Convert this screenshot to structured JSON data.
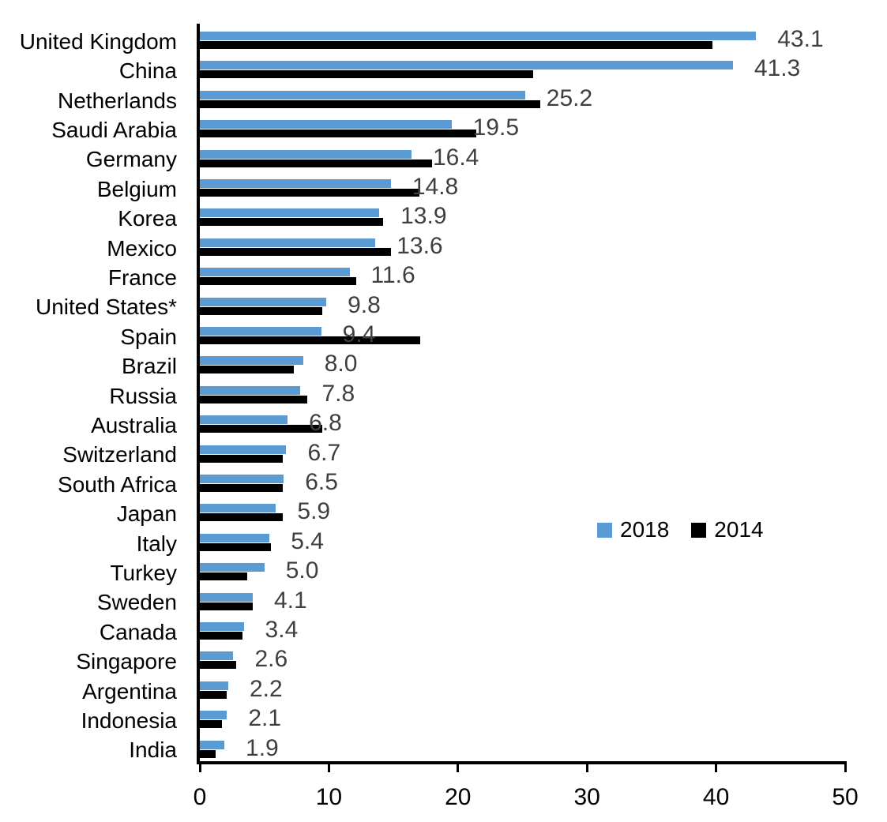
{
  "chart_data": {
    "type": "bar",
    "orientation": "horizontal",
    "title": "",
    "xlabel": "",
    "ylabel": "",
    "xlim": [
      0,
      50
    ],
    "x_ticks": [
      "0",
      "10",
      "20",
      "30",
      "40",
      "50"
    ],
    "x_tick_values": [
      0,
      10,
      20,
      30,
      40,
      50
    ],
    "grid": false,
    "legend_position": "center-right",
    "value_label_color": "#3F3F3F",
    "categories": [
      "United Kingdom",
      "China",
      "Netherlands",
      "Saudi Arabia",
      "Germany",
      "Belgium",
      "Korea",
      "Mexico",
      "France",
      "United States*",
      "Spain",
      "Brazil",
      "Russia",
      "Australia",
      "Switzerland",
      "South Africa",
      "Japan",
      "Italy",
      "Turkey",
      "Sweden",
      "Canada",
      "Singapore",
      "Argentina",
      "Indonesia",
      "India"
    ],
    "series": [
      {
        "name": "2018",
        "color": "#5B9BD5",
        "values": [
          43.1,
          41.3,
          25.2,
          19.5,
          16.4,
          14.8,
          13.9,
          13.6,
          11.6,
          9.8,
          9.4,
          8.0,
          7.8,
          6.8,
          6.7,
          6.5,
          5.9,
          5.4,
          5.0,
          4.1,
          3.4,
          2.6,
          2.2,
          2.1,
          1.9
        ],
        "data_labels": [
          "43.1",
          "41.3",
          "25.2",
          "19.5",
          "16.4",
          "14.8",
          "13.9",
          "13.6",
          "11.6",
          "9.8",
          "9.4",
          "8.0",
          "7.8",
          "6.8",
          "6.7",
          "6.5",
          "5.9",
          "5.4",
          "5.0",
          "4.1",
          "3.4",
          "2.6",
          "2.2",
          "2.1",
          "1.9"
        ],
        "data_labels_shown": true
      },
      {
        "name": "2014",
        "color": "#000000",
        "values": [
          39.7,
          25.8,
          26.4,
          21.4,
          18.0,
          17.0,
          14.2,
          14.8,
          12.1,
          9.5,
          17.1,
          7.3,
          8.3,
          9.5,
          6.4,
          6.4,
          6.4,
          5.5,
          3.7,
          4.1,
          3.3,
          2.8,
          2.1,
          1.7,
          1.2
        ],
        "data_labels_shown": false
      }
    ],
    "legend": [
      {
        "label": "2018",
        "color": "#5B9BD5"
      },
      {
        "label": "2014",
        "color": "#000000"
      }
    ]
  }
}
